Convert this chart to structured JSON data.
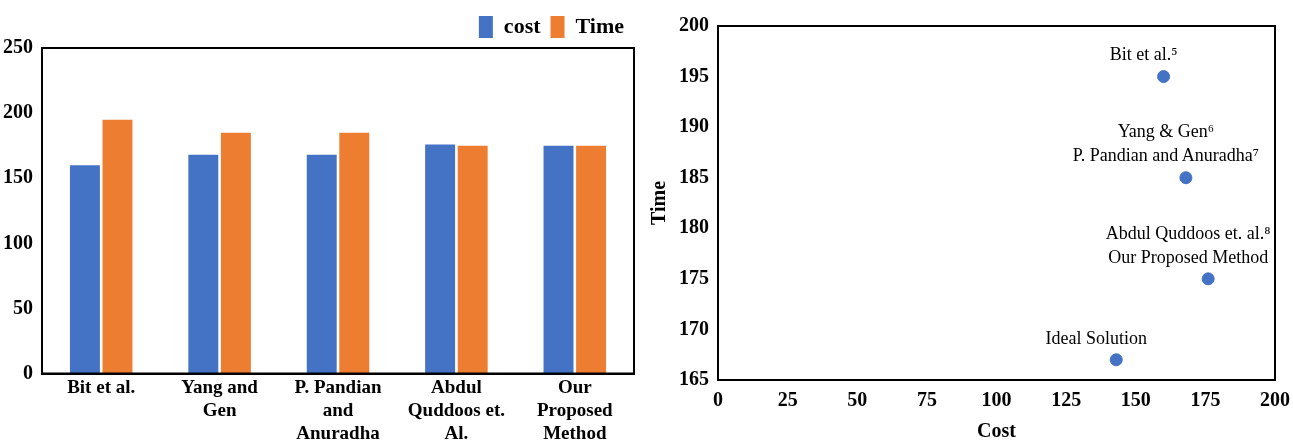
{
  "chart_data": [
    {
      "type": "bar",
      "categories": [
        "Bit et al.",
        "Yang and Gen",
        "P. Pandian and Anuradha",
        "Abdul Quddoos et. Al.",
        "Our Proposed Method"
      ],
      "series": [
        {
          "name": "cost",
          "color": "#4472c4",
          "values": [
            160,
            168,
            168,
            176,
            175
          ]
        },
        {
          "name": "Time",
          "color": "#ed7d31",
          "values": [
            195,
            185,
            185,
            175,
            175
          ]
        }
      ],
      "ylim": [
        0,
        250
      ],
      "yticks": [
        0,
        50,
        100,
        150,
        200,
        250
      ],
      "legend": "top right"
    },
    {
      "type": "scatter",
      "xlabel": "Cost",
      "ylabel": "Time",
      "x": [
        160,
        168,
        176,
        143
      ],
      "values": [
        195,
        185,
        175,
        167
      ],
      "color": "#4472c4",
      "marker": "circle",
      "xlim": [
        0,
        200
      ],
      "xticks": [
        0,
        25,
        50,
        75,
        100,
        125,
        150,
        175,
        200
      ],
      "ylim": [
        165,
        200
      ],
      "yticks": [
        165,
        170,
        175,
        180,
        185,
        190,
        195,
        200
      ],
      "annotations": [
        {
          "text": "Bit et al.⁵",
          "x": 160,
          "y": 195
        },
        {
          "text": "P. Pandian and Anuradha⁷",
          "x": 168,
          "y": 185
        },
        {
          "text": "Yang & Gen⁶",
          "x": 168,
          "y": 185
        },
        {
          "text": "Our Proposed Method",
          "x": 176,
          "y": 175
        },
        {
          "text": "Abdul Quddoos et. al.⁸",
          "x": 176,
          "y": 175
        },
        {
          "text": "Ideal Solution",
          "x": 143,
          "y": 167
        }
      ]
    }
  ]
}
